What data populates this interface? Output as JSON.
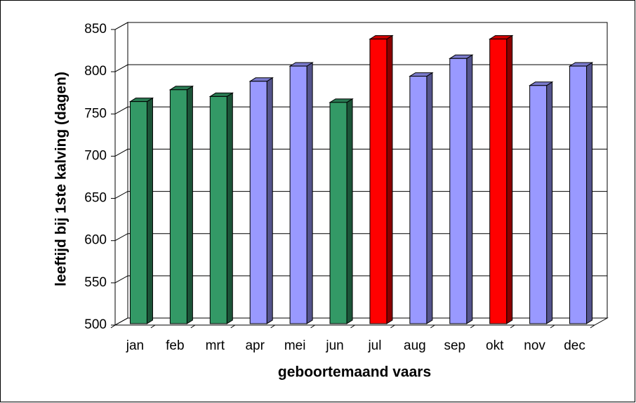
{
  "chart_data": {
    "type": "bar3d",
    "x_label": "geboortemaand vaars",
    "y_label": "leeftijd bij 1ste kalving (dagen)",
    "categories": [
      "jan",
      "feb",
      "mrt",
      "apr",
      "mei",
      "jun",
      "jul",
      "aug",
      "sep",
      "okt",
      "nov",
      "dec"
    ],
    "values": [
      763,
      777,
      769,
      787,
      805,
      762,
      837,
      793,
      814,
      837,
      782,
      805
    ],
    "colors": [
      "#339966",
      "#339966",
      "#339966",
      "#9999ff",
      "#9999ff",
      "#339966",
      "#ff0000",
      "#9999ff",
      "#9999ff",
      "#ff0000",
      "#9999ff",
      "#9999ff"
    ],
    "ylim": [
      500,
      850
    ],
    "yticks": [
      500,
      550,
      600,
      650,
      700,
      750,
      800,
      850
    ],
    "grid": true
  }
}
